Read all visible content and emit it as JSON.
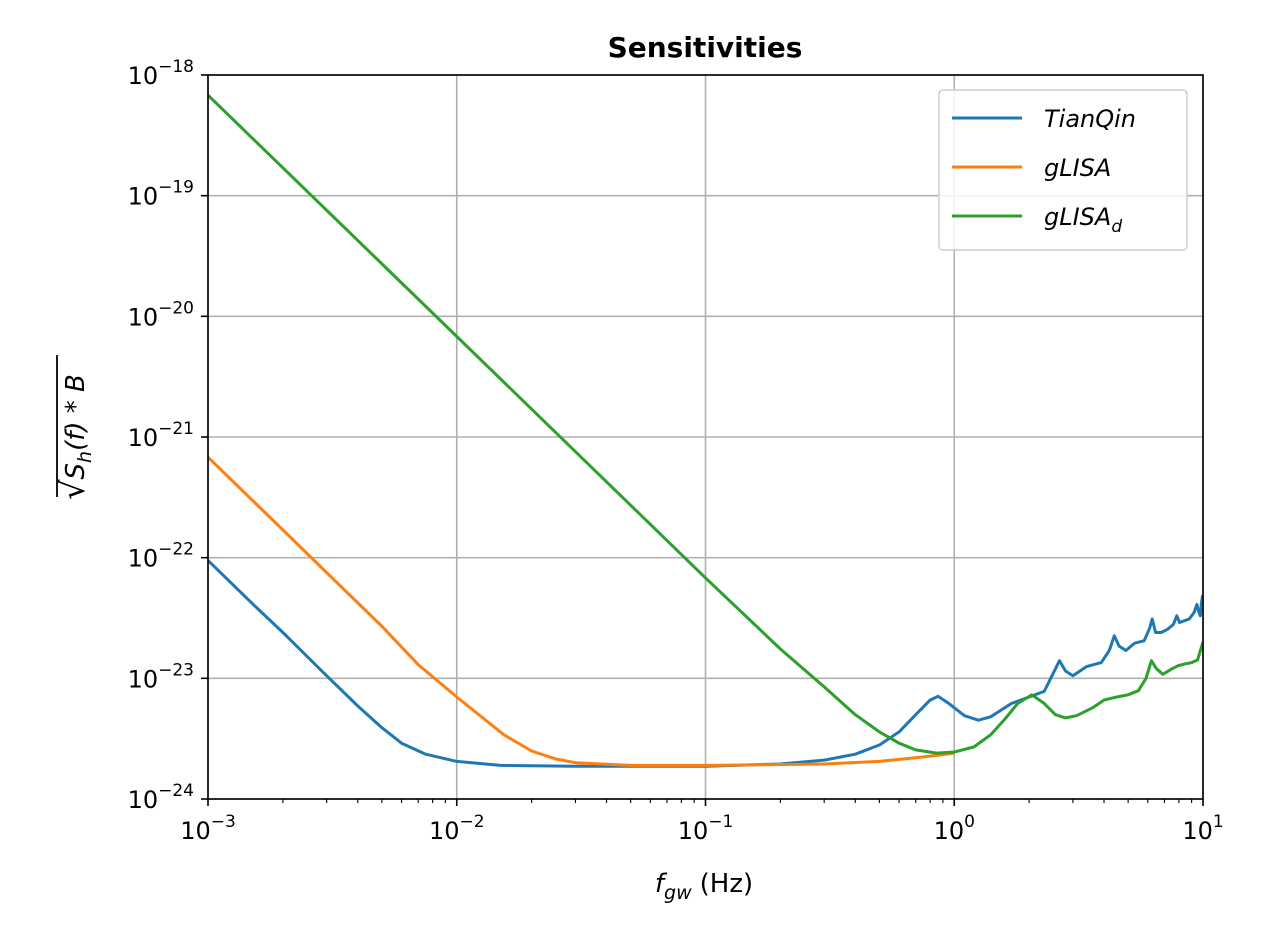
{
  "chart_data": {
    "type": "line",
    "title": "Sensitivities",
    "xscale": "log",
    "yscale": "log",
    "xlim": [
      0.001,
      10
    ],
    "ylim": [
      1e-24,
      1e-18
    ],
    "xlabel": {
      "main": "f",
      "subscript": "gw",
      "unit": "(Hz)"
    },
    "ylabel": {
      "sqrt_of": "S",
      "subscript": "h",
      "rest": "(f) * B"
    },
    "xticks": [
      {
        "value": 0.001,
        "base": "10",
        "exp": "−3"
      },
      {
        "value": 0.01,
        "base": "10",
        "exp": "−2"
      },
      {
        "value": 0.1,
        "base": "10",
        "exp": "−1"
      },
      {
        "value": 1,
        "base": "10",
        "exp": "0"
      },
      {
        "value": 10,
        "base": "10",
        "exp": "1"
      }
    ],
    "yticks": [
      {
        "value": 1e-24,
        "base": "10",
        "exp": "−24"
      },
      {
        "value": 1e-23,
        "base": "10",
        "exp": "−23"
      },
      {
        "value": 1e-22,
        "base": "10",
        "exp": "−22"
      },
      {
        "value": 1e-21,
        "base": "10",
        "exp": "−21"
      },
      {
        "value": 1e-20,
        "base": "10",
        "exp": "−20"
      },
      {
        "value": 1e-19,
        "base": "10",
        "exp": "−19"
      },
      {
        "value": 1e-18,
        "base": "10",
        "exp": "−18"
      }
    ],
    "grid": true,
    "legend_position": "top-right",
    "series": [
      {
        "name": "TianQin",
        "label_main": "TianQin",
        "label_sub": "",
        "color": "#1f77b4",
        "points": [
          [
            0.001,
            9.5e-23
          ],
          [
            0.0015,
            4.2e-23
          ],
          [
            0.002,
            2.4e-23
          ],
          [
            0.003,
            1.05e-23
          ],
          [
            0.004,
            5.9e-24
          ],
          [
            0.005,
            3.9e-24
          ],
          [
            0.006,
            2.9e-24
          ],
          [
            0.0075,
            2.35e-24
          ],
          [
            0.01,
            2.05e-24
          ],
          [
            0.015,
            1.9e-24
          ],
          [
            0.03,
            1.87e-24
          ],
          [
            0.1,
            1.87e-24
          ],
          [
            0.2,
            1.95e-24
          ],
          [
            0.3,
            2.1e-24
          ],
          [
            0.4,
            2.35e-24
          ],
          [
            0.5,
            2.8e-24
          ],
          [
            0.6,
            3.6e-24
          ],
          [
            0.7,
            5e-24
          ],
          [
            0.8,
            6.6e-24
          ],
          [
            0.86,
            7.1e-24
          ],
          [
            0.95,
            6.2e-24
          ],
          [
            1.1,
            4.9e-24
          ],
          [
            1.25,
            4.5e-24
          ],
          [
            1.4,
            4.8e-24
          ],
          [
            1.7,
            6.2e-24
          ],
          [
            2.0,
            7e-24
          ],
          [
            2.3,
            7.8e-24
          ],
          [
            2.5,
            1.1e-23
          ],
          [
            2.65,
            1.4e-23
          ],
          [
            2.8,
            1.15e-23
          ],
          [
            3.0,
            1.05e-23
          ],
          [
            3.4,
            1.25e-23
          ],
          [
            3.9,
            1.35e-23
          ],
          [
            4.2,
            1.7e-23
          ],
          [
            4.4,
            2.25e-23
          ],
          [
            4.6,
            1.85e-23
          ],
          [
            4.9,
            1.7e-23
          ],
          [
            5.3,
            1.95e-23
          ],
          [
            5.8,
            2.05e-23
          ],
          [
            6.1,
            2.6e-23
          ],
          [
            6.25,
            3.1e-23
          ],
          [
            6.45,
            2.4e-23
          ],
          [
            6.8,
            2.4e-23
          ],
          [
            7.2,
            2.55e-23
          ],
          [
            7.6,
            2.8e-23
          ],
          [
            7.85,
            3.3e-23
          ],
          [
            8.05,
            2.9e-23
          ],
          [
            8.4,
            3e-23
          ],
          [
            8.8,
            3.1e-23
          ],
          [
            9.2,
            3.5e-23
          ],
          [
            9.45,
            4.1e-23
          ],
          [
            9.6,
            3.6e-23
          ],
          [
            9.75,
            3.3e-23
          ],
          [
            9.85,
            4.2e-23
          ],
          [
            9.95,
            4.8e-23
          ],
          [
            10,
            4.2e-23
          ]
        ]
      },
      {
        "name": "gLISA",
        "label_main": "gLISA",
        "label_sub": "",
        "color": "#ff7f0e",
        "points": [
          [
            0.001,
            6.8e-22
          ],
          [
            0.002,
            1.7e-22
          ],
          [
            0.003,
            7.5e-23
          ],
          [
            0.005,
            2.7e-23
          ],
          [
            0.007,
            1.3e-23
          ],
          [
            0.01,
            7e-24
          ],
          [
            0.0155,
            3.4e-24
          ],
          [
            0.02,
            2.5e-24
          ],
          [
            0.025,
            2.15e-24
          ],
          [
            0.03,
            2e-24
          ],
          [
            0.05,
            1.9e-24
          ],
          [
            0.1,
            1.9e-24
          ],
          [
            0.3,
            1.95e-24
          ],
          [
            0.5,
            2.05e-24
          ],
          [
            0.7,
            2.2e-24
          ],
          [
            0.85,
            2.3e-24
          ],
          [
            1.0,
            2.4e-24
          ]
        ]
      },
      {
        "name": "gLISA_d",
        "label_main": "gLISA",
        "label_sub": "d",
        "color": "#2ca02c",
        "points": [
          [
            0.001,
            6.8e-19
          ],
          [
            0.01,
            6.8e-21
          ],
          [
            0.1,
            6.8e-23
          ],
          [
            0.2,
            1.75e-23
          ],
          [
            0.3,
            8.5e-24
          ],
          [
            0.4,
            5e-24
          ],
          [
            0.5,
            3.6e-24
          ],
          [
            0.6,
            2.9e-24
          ],
          [
            0.7,
            2.55e-24
          ],
          [
            0.85,
            2.4e-24
          ],
          [
            1.0,
            2.45e-24
          ],
          [
            1.2,
            2.7e-24
          ],
          [
            1.4,
            3.4e-24
          ],
          [
            1.6,
            4.6e-24
          ],
          [
            1.8,
            6.2e-24
          ],
          [
            2.05,
            7.3e-24
          ],
          [
            2.3,
            6.2e-24
          ],
          [
            2.55,
            5e-24
          ],
          [
            2.8,
            4.7e-24
          ],
          [
            3.1,
            4.9e-24
          ],
          [
            3.6,
            5.7e-24
          ],
          [
            4.0,
            6.6e-24
          ],
          [
            4.5,
            7e-24
          ],
          [
            5.0,
            7.3e-24
          ],
          [
            5.5,
            7.9e-24
          ],
          [
            5.9,
            1e-23
          ],
          [
            6.2,
            1.4e-23
          ],
          [
            6.5,
            1.2e-23
          ],
          [
            6.9,
            1.08e-23
          ],
          [
            7.5,
            1.2e-23
          ],
          [
            8.0,
            1.28e-23
          ],
          [
            8.5,
            1.32e-23
          ],
          [
            9.0,
            1.35e-23
          ],
          [
            9.5,
            1.42e-23
          ],
          [
            10,
            2e-23
          ]
        ]
      }
    ]
  }
}
